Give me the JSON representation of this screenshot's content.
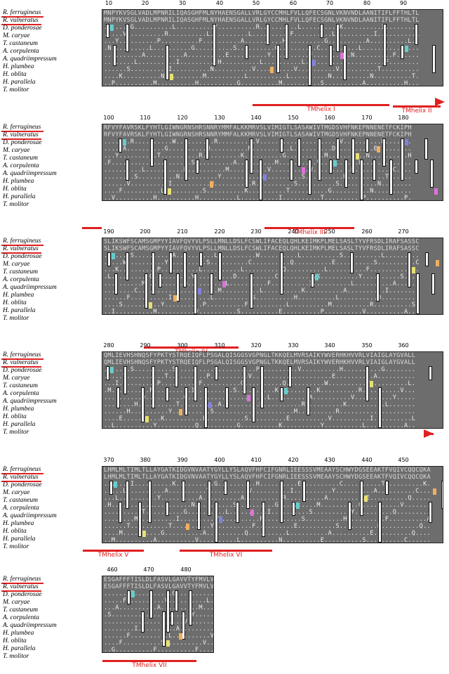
{
  "species": [
    "R. ferrugineus",
    "R. vulneratus",
    "D. ponderosae",
    "M. caryae",
    "T. castaneum",
    "A. corpulenta",
    "A. quadriimpressum",
    "H. plumbea",
    "H. oblita",
    "H. parallela",
    "T. molitor"
  ],
  "colors": {
    "tm": "#e02020",
    "block": "#6d6d6d",
    "conserved_col": "#f4f4f4",
    "cyan": "#66cccc",
    "orange": "#f0b060",
    "magenta": "#e070e0",
    "yellow": "#e8e070",
    "blue": "#8080e0"
  },
  "blocks": [
    {
      "ticks": [
        "10",
        "20",
        "30",
        "40",
        "50",
        "60",
        "70",
        "80",
        "90"
      ],
      "consensus": "MNPYKVSGLVADLMPNRILIQASGHFMLNYHAENSGALLVRLGYCCMHLFVLLQFECSGNLVKNVNDLAANITIFLFFTHLTL",
      "tm": [
        {
          "label": "TMhelix I"
        },
        {
          "label": "TMhelix II"
        }
      ]
    },
    {
      "ticks": [
        "100",
        "110",
        "120",
        "130",
        "140",
        "150",
        "160",
        "170",
        "180"
      ],
      "consensus": "RFVYFAVRSKLFYHTLGIWNGRNSHRSNNRYMMFALKKMRVSLVIMIGTLSASAWIVTMGDSVHFNKEPNNENETFCKIPH",
      "tm": [
        {
          "label": ""
        },
        {
          "label": "TMhelix III"
        }
      ]
    },
    {
      "ticks": [
        "190",
        "200",
        "210",
        "220",
        "230",
        "240",
        "250",
        "260",
        "270"
      ],
      "consensus": "SLIKSWFSCAMSGMPYYIAVFQVYVLPSLLMNLLDSLFCSWLIFACEQLQHLKEIMKPLMELSASLTYVFRSDLIRAFSASSC",
      "tm": [
        {
          "label": "TMhelix IV"
        }
      ]
    },
    {
      "ticks": [
        "280",
        "290",
        "300",
        "310",
        "320",
        "330",
        "340",
        "350",
        "360"
      ],
      "consensus": "QMLIEVHSHNQSFYPKTYSTRQEIQFLPSGALQISGGSVGPNGLTKKQELMVRSAIKYWVERHKHVVRLVIAIGLAYGVALL",
      "tm": [
        {
          "label": ""
        }
      ]
    },
    {
      "ticks": [
        "370",
        "380",
        "390",
        "400",
        "410",
        "420",
        "430",
        "440",
        "450"
      ],
      "consensus": "LHMLMLTIMLTLLAYGATKIDGVNVAATYGYLLYSLAQVFHFCIFGNRLIEESSSVMEAAYSCHWYDGSEEAKTFVQIVCQQCQKA",
      "tm": [
        {
          "label": "TMhelix V"
        },
        {
          "label": "TMhelix VI"
        }
      ]
    },
    {
      "ticks": [
        "460",
        "470",
        "480"
      ],
      "consensus": "ESGAFFFTISLDLFASVLGAVVTYFMVLVQLS",
      "tm": [
        {
          "label": "TMhelix VII"
        }
      ]
    }
  ]
}
